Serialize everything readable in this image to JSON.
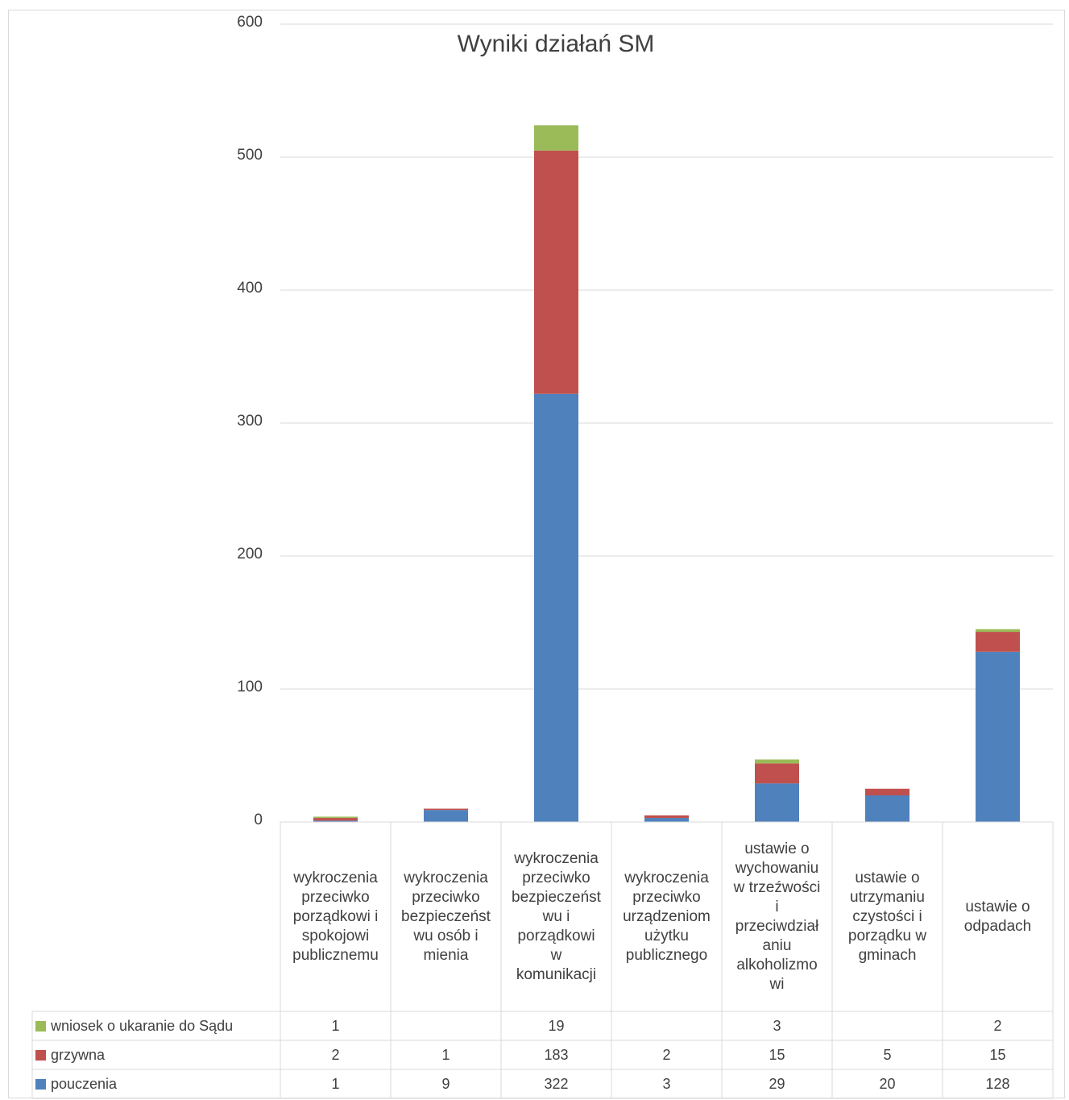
{
  "chart_data": {
    "type": "bar",
    "stacked": true,
    "title": "Wyniki działań SM",
    "categories": [
      "wykroczenia przeciwko porządkowi i spokojowi publicznemu",
      "wykroczenia przeciwko bezpieczeństwu osób i mienia",
      "wykroczenia przeciwko bezpieczeństwu i porządkowi w komunikacji",
      "wykroczenia przeciwko urządzeniom użytku publicznego",
      "ustawie o wychowaniu w trzeźwości i przeciwdziałaniu alkoholizmowi",
      "ustawie o utrzymaniu czystości i porządku w gminach",
      "ustawie o odpadach"
    ],
    "category_lines": [
      [
        "wykroczenia",
        "przeciwko",
        "porządkowi i",
        "spokojowi",
        "publicznemu"
      ],
      [
        "wykroczenia",
        "przeciwko",
        "bezpieczeńst",
        "wu osób i",
        "mienia"
      ],
      [
        "wykroczenia",
        "przeciwko",
        "bezpieczeńst",
        "wu i",
        "porządkowi",
        "w",
        "komunikacji"
      ],
      [
        "wykroczenia",
        "przeciwko",
        "urządzeniom",
        "użytku",
        "publicznego"
      ],
      [
        "ustawie o",
        "wychowaniu",
        "w trzeźwości",
        "i",
        "przeciwdział",
        "aniu",
        "alkoholizmo",
        "wi"
      ],
      [
        "ustawie o",
        "utrzymaniu",
        "czystości i",
        "porządku w",
        "gminach"
      ],
      [
        "ustawie o",
        "odpadach"
      ]
    ],
    "series": [
      {
        "name": "pouczenia",
        "color": "#4f81bd",
        "values": [
          1,
          9,
          322,
          3,
          29,
          20,
          128
        ]
      },
      {
        "name": "grzywna",
        "color": "#c0504d",
        "values": [
          2,
          1,
          183,
          2,
          15,
          5,
          15
        ]
      },
      {
        "name": "wniosek o ukaranie do Sądu",
        "color": "#9bbb59",
        "values": [
          1,
          null,
          19,
          null,
          3,
          null,
          2
        ]
      }
    ],
    "ylim": [
      0,
      600
    ],
    "yticks": [
      0,
      100,
      200,
      300,
      400,
      500,
      600
    ],
    "grid": true,
    "legend": "data-table-left"
  }
}
